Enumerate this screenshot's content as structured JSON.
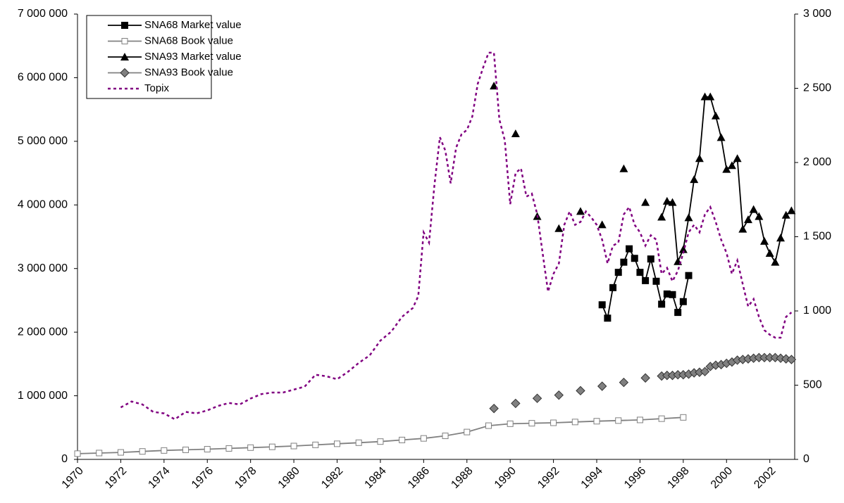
{
  "chart_data": {
    "type": "line",
    "xlim": [
      1970,
      2003.15
    ],
    "xticks": [
      1970,
      1972,
      1974,
      1976,
      1978,
      1980,
      1982,
      1984,
      1986,
      1988,
      1990,
      1992,
      1994,
      1996,
      1998,
      2000,
      2002
    ],
    "ylim": [
      0,
      7000000
    ],
    "yticks": [
      0,
      {
        "value": 1000000,
        "label": "1 000 000"
      },
      {
        "value": 2000000,
        "label": "2 000 000"
      },
      {
        "value": 3000000,
        "label": "3 000 000"
      },
      {
        "value": 4000000,
        "label": "4 000 000"
      },
      {
        "value": 5000000,
        "label": "5 000 000"
      },
      {
        "value": 6000000,
        "label": "6 000 000"
      },
      {
        "value": 7000000,
        "label": "7 000 000"
      }
    ],
    "y2lim": [
      0,
      3000
    ],
    "y2ticks": [
      0,
      500,
      {
        "value": 1000,
        "label": "1 000"
      },
      {
        "value": 1500,
        "label": "1 500"
      },
      {
        "value": 2000,
        "label": "2 000"
      },
      {
        "value": 2500,
        "label": "2 500"
      },
      {
        "value": 3000,
        "label": "3 000"
      }
    ],
    "grid": false,
    "legend": "top-left",
    "series": [
      {
        "name": "SNA68 Market value",
        "color": "#000000",
        "marker": "square-filled",
        "x": [
          1994.25,
          1994.5,
          1994.75,
          1995,
          1995.25,
          1995.5,
          1995.75,
          1996,
          1996.25,
          1996.5,
          1996.75,
          1997,
          1997.25,
          1997.5,
          1997.75,
          1998,
          1998.25
        ],
        "values": [
          2430000,
          2220000,
          2700000,
          2940000,
          3100000,
          3310000,
          3160000,
          2940000,
          2810000,
          3150000,
          2800000,
          2440000,
          2600000,
          2590000,
          2310000,
          2480000,
          2890000
        ]
      },
      {
        "name": "SNA68 Book value",
        "color": "#808080",
        "marker": "square-open",
        "x": [
          1970,
          1971,
          1972,
          1973,
          1974,
          1975,
          1976,
          1977,
          1978,
          1979,
          1980,
          1981,
          1982,
          1983,
          1984,
          1985,
          1986,
          1987,
          1988,
          1989,
          1990,
          1991,
          1992,
          1993,
          1994,
          1995,
          1996,
          1997,
          1998
        ],
        "values": [
          90000,
          100000,
          110000,
          125000,
          140000,
          150000,
          160000,
          172000,
          185000,
          197000,
          210000,
          228000,
          245000,
          262000,
          280000,
          305000,
          330000,
          370000,
          430000,
          530000,
          560000,
          568000,
          575000,
          588000,
          600000,
          610000,
          620000,
          640000,
          660000
        ]
      },
      {
        "name": "SNA93 Market value",
        "color": "#000000",
        "marker": "triangle",
        "x": [
          1989.25,
          1989.75,
          1990.25,
          1990.75,
          1991.25,
          1991.75,
          1992.25,
          1992.75,
          1993.25,
          1993.75,
          1994.25,
          1994.75,
          1995.25,
          1995.75,
          1996.25,
          1996.75,
          1997,
          1997.25,
          1997.5,
          1997.75,
          1998,
          1998.25,
          1998.5,
          1998.75,
          1999,
          1999.25,
          1999.5,
          1999.75,
          2000,
          2000.25,
          2000.5,
          2000.75,
          2001,
          2001.25,
          2001.5,
          2001.75,
          2002,
          2002.25,
          2002.5,
          2002.75,
          2003
        ],
        "values": [
          5870000,
          null,
          5120000,
          null,
          3820000,
          null,
          3630000,
          null,
          3900000,
          null,
          3690000,
          null,
          4570000,
          null,
          4040000,
          null,
          3810000,
          4060000,
          4040000,
          3110000,
          3300000,
          3800000,
          4400000,
          4730000,
          5700000,
          5700000,
          5400000,
          5060000,
          4560000,
          4620000,
          4730000,
          3620000,
          3770000,
          3930000,
          3820000,
          3430000,
          3240000,
          3100000,
          3480000,
          3840000,
          3910000
        ]
      },
      {
        "name": "SNA93 Book value",
        "color": "#808080",
        "marker": "diamond",
        "x": [
          1989.25,
          1989.75,
          1990.25,
          1990.75,
          1991.25,
          1991.75,
          1992.25,
          1992.75,
          1993.25,
          1993.75,
          1994.25,
          1994.75,
          1995.25,
          1995.75,
          1996.25,
          1996.75,
          1997,
          1997.25,
          1997.5,
          1997.75,
          1998,
          1998.25,
          1998.5,
          1998.75,
          1999,
          1999.25,
          1999.5,
          1999.75,
          2000,
          2000.25,
          2000.5,
          2000.75,
          2001,
          2001.25,
          2001.5,
          2001.75,
          2002,
          2002.25,
          2002.5,
          2002.75,
          2003
        ],
        "values": [
          800000,
          null,
          880000,
          null,
          960000,
          null,
          1010000,
          null,
          1080000,
          null,
          1150000,
          null,
          1210000,
          null,
          1280000,
          null,
          1310000,
          1320000,
          1320000,
          1330000,
          1330000,
          1340000,
          1360000,
          1370000,
          1380000,
          1460000,
          1480000,
          1490000,
          1510000,
          1530000,
          1560000,
          1570000,
          1580000,
          1590000,
          1600000,
          1600000,
          1600000,
          1600000,
          1590000,
          1580000,
          1570000
        ]
      },
      {
        "name": "Topix",
        "color": "#800080",
        "marker": "none",
        "dash": true,
        "axis": "y2",
        "x": [
          1972,
          1972.5,
          1973,
          1973.5,
          1974,
          1974.5,
          1975,
          1975.5,
          1976,
          1976.5,
          1977,
          1977.5,
          1978,
          1978.5,
          1979,
          1979.5,
          1980,
          1980.5,
          1981,
          1981.5,
          1982,
          1982.5,
          1983,
          1983.5,
          1984,
          1984.5,
          1985,
          1985.5,
          1985.75,
          1986,
          1986.25,
          1986.5,
          1986.75,
          1987,
          1987.25,
          1987.5,
          1987.75,
          1988,
          1988.25,
          1988.5,
          1988.75,
          1989,
          1989.25,
          1989.5,
          1989.75,
          1990,
          1990.25,
          1990.5,
          1990.75,
          1991,
          1991.25,
          1991.5,
          1991.75,
          1992,
          1992.25,
          1992.5,
          1992.75,
          1993,
          1993.25,
          1993.5,
          1993.75,
          1994,
          1994.25,
          1994.5,
          1994.75,
          1995,
          1995.25,
          1995.5,
          1995.75,
          1996,
          1996.25,
          1996.5,
          1996.75,
          1997,
          1997.25,
          1997.5,
          1997.75,
          1998,
          1998.25,
          1998.5,
          1998.75,
          1999,
          1999.25,
          1999.5,
          1999.75,
          2000,
          2000.25,
          2000.5,
          2000.75,
          2001,
          2001.25,
          2001.5,
          2001.75,
          2002,
          2002.25,
          2002.5,
          2002.75,
          2003
        ],
        "values": [
          350,
          390,
          370,
          320,
          310,
          270,
          320,
          310,
          330,
          360,
          380,
          370,
          410,
          440,
          450,
          450,
          470,
          490,
          570,
          560,
          540,
          590,
          650,
          700,
          800,
          860,
          960,
          1020,
          1100,
          1530,
          1460,
          1850,
          2170,
          2080,
          1860,
          2100,
          2190,
          2220,
          2310,
          2530,
          2640,
          2740,
          2740,
          2290,
          2150,
          1720,
          1930,
          1960,
          1770,
          1790,
          1650,
          1390,
          1130,
          1250,
          1320,
          1580,
          1670,
          1580,
          1600,
          1670,
          1630,
          1580,
          1480,
          1320,
          1440,
          1460,
          1650,
          1700,
          1580,
          1530,
          1440,
          1510,
          1480,
          1250,
          1290,
          1200,
          1270,
          1390,
          1530,
          1580,
          1530,
          1650,
          1700,
          1600,
          1480,
          1390,
          1250,
          1340,
          1180,
          1030,
          1080,
          960,
          870,
          840,
          820,
          820,
          960,
          990
        ]
      }
    ]
  }
}
